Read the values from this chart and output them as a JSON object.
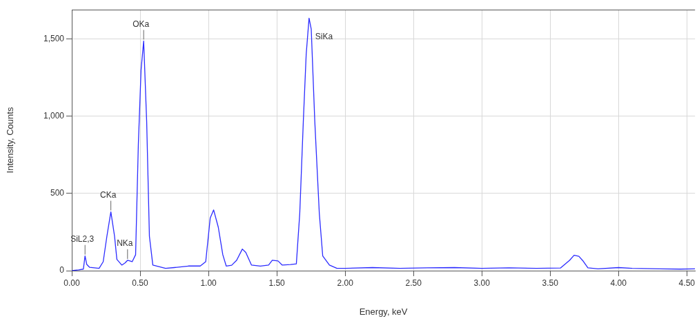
{
  "chart_data": {
    "type": "line",
    "xlabel": "Energy, keV",
    "ylabel": "Intensity, Counts",
    "x": [
      0,
      0.05,
      0.085,
      0.097,
      0.11,
      0.13,
      0.2,
      0.23,
      0.257,
      0.286,
      0.313,
      0.33,
      0.366,
      0.39,
      0.408,
      0.442,
      0.467,
      0.487,
      0.507,
      0.526,
      0.548,
      0.568,
      0.593,
      0.686,
      0.75,
      0.853,
      0.94,
      0.98,
      1.013,
      1.038,
      1.072,
      1.105,
      1.13,
      1.17,
      1.206,
      1.248,
      1.273,
      1.315,
      1.38,
      1.44,
      1.467,
      1.509,
      1.54,
      1.6,
      1.643,
      1.668,
      1.694,
      1.715,
      1.736,
      1.752,
      1.778,
      1.811,
      1.836,
      1.885,
      1.94,
      2.0,
      2.2,
      2.4,
      2.6,
      2.8,
      3.0,
      3.2,
      3.4,
      3.575,
      3.642,
      3.675,
      3.71,
      3.743,
      3.776,
      3.85,
      4.0,
      4.1,
      4.3,
      4.45,
      4.56
    ],
    "series": [
      {
        "color": "#2b2bff",
        "values": [
          0,
          5,
          10,
          95,
          40,
          22,
          15,
          58,
          223,
          381,
          223,
          73,
          36,
          50,
          67,
          58,
          103,
          817,
          1300,
          1487,
          966,
          223,
          36,
          15,
          20,
          30,
          30,
          58,
          341,
          393,
          281,
          103,
          30,
          35,
          67,
          140,
          118,
          36,
          30,
          36,
          67,
          63,
          36,
          40,
          44,
          371,
          966,
          1400,
          1635,
          1563,
          966,
          371,
          95,
          36,
          15,
          15,
          20,
          15,
          18,
          20,
          15,
          18,
          15,
          17,
          67,
          100,
          93,
          60,
          18,
          12,
          20,
          15,
          12,
          10,
          12
        ]
      }
    ],
    "xlim": [
      0,
      4.56
    ],
    "ylim": [
      0,
      1690
    ],
    "xticks": [
      {
        "value": 0,
        "label": "0.00"
      },
      {
        "value": 0.5,
        "label": "0.50"
      },
      {
        "value": 1,
        "label": "1.00"
      },
      {
        "value": 1.5,
        "label": "1.50"
      },
      {
        "value": 2,
        "label": "2.00"
      },
      {
        "value": 2.5,
        "label": "2.50"
      },
      {
        "value": 3,
        "label": "3.00"
      },
      {
        "value": 3.5,
        "label": "3.50"
      },
      {
        "value": 4,
        "label": "4.00"
      },
      {
        "value": 4.5,
        "label": "4.50"
      }
    ],
    "yticks": [
      0,
      500,
      {
        "value": 1000,
        "label": "1,000"
      },
      {
        "value": 1500,
        "label": "1,500"
      }
    ],
    "grid": true,
    "legend": false,
    "marker": "none",
    "line_style": "solid",
    "annotations": [
      {
        "text": "SiL2,3",
        "x": 0.097,
        "y": 95
      },
      {
        "text": "CKa",
        "x": 0.286,
        "y": 381
      },
      {
        "text": "NKa",
        "x": 0.408,
        "y": 67
      },
      {
        "text": "OKa",
        "x": 0.526,
        "y": 1487
      },
      {
        "text": "SiKa",
        "x": 1.736,
        "y": 1635
      }
    ]
  }
}
